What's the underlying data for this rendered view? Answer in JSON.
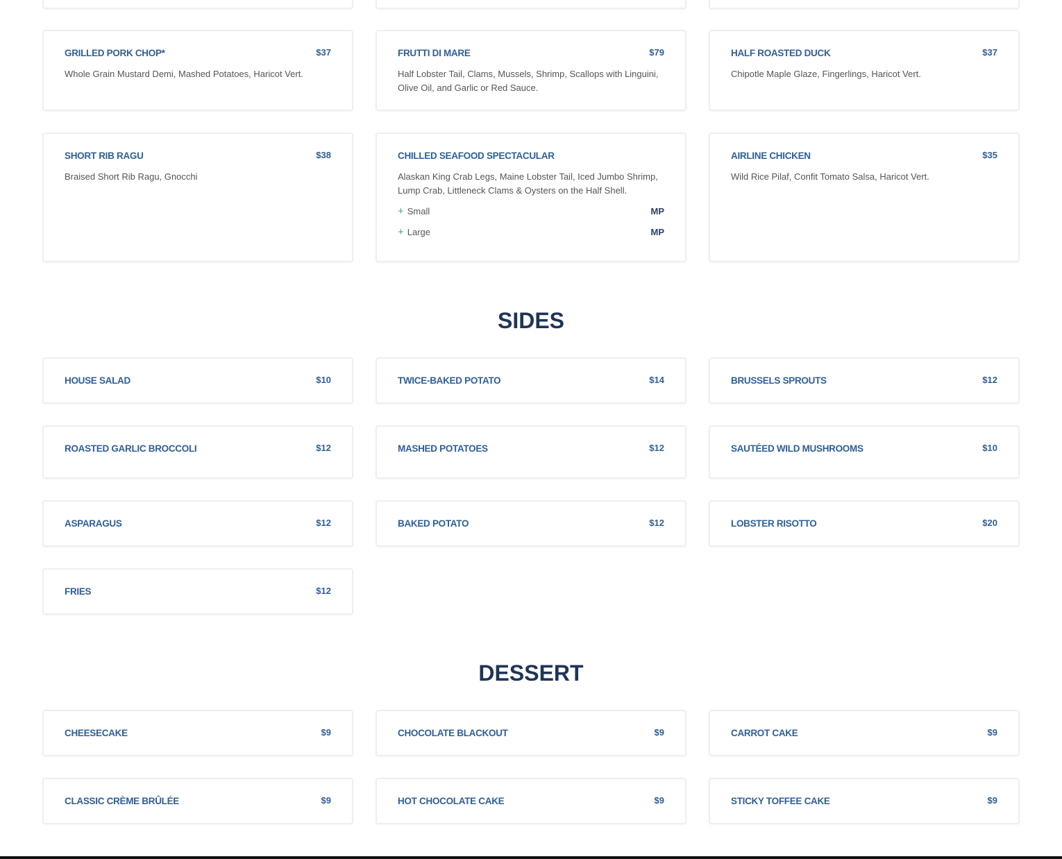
{
  "mains": [
    {
      "name": "Grilled Pork Chop*",
      "price": "$37",
      "desc": "Whole Grain Mustard Demi, Mashed Potatoes, Haricot Vert."
    },
    {
      "name": "Frutti Di Mare",
      "price": "$79",
      "desc": "Half Lobster Tail, Clams, Mussels, Shrimp, Scallops with Linguini, Olive Oil, and Garlic or Red Sauce."
    },
    {
      "name": "Half Roasted Duck",
      "price": "$37",
      "desc": "Chipotle Maple Glaze, Fingerlings, Haricot Vert."
    },
    {
      "name": "Short Rib Ragu",
      "price": "$38",
      "desc": "Braised Short Rib Ragu, Gnocchi"
    },
    {
      "name": "Chilled Seafood Spectacular",
      "price": "",
      "desc": "Alaskan King Crab Legs, Maine Lobster Tail, Iced Jumbo Shrimp, Lump Crab, Littleneck Clams & Oysters on the Half Shell.",
      "options": [
        {
          "label": "Small",
          "price": "MP"
        },
        {
          "label": "Large",
          "price": "MP"
        }
      ]
    },
    {
      "name": "Airline Chicken",
      "price": "$35",
      "desc": "Wild Rice Pilaf, Confit Tomato Salsa, Haricot Vert."
    }
  ],
  "sides": {
    "title": "SIDES",
    "items": [
      {
        "name": "House Salad",
        "price": "$10"
      },
      {
        "name": "Twice-Baked Potato",
        "price": "$14"
      },
      {
        "name": "Brussels Sprouts",
        "price": "$12"
      },
      {
        "name": "Roasted Garlic Broccoli",
        "price": "$12"
      },
      {
        "name": "Mashed Potatoes",
        "price": "$12"
      },
      {
        "name": "Sautéed Wild Mushrooms",
        "price": "$10"
      },
      {
        "name": "Asparagus",
        "price": "$12"
      },
      {
        "name": "Baked Potato",
        "price": "$12"
      },
      {
        "name": "Lobster Risotto",
        "price": "$20"
      },
      {
        "name": "Fries",
        "price": "$12"
      }
    ]
  },
  "dessert": {
    "title": "DESSERT",
    "items": [
      {
        "name": "Cheesecake",
        "price": "$9"
      },
      {
        "name": "Chocolate Blackout",
        "price": "$9"
      },
      {
        "name": "Carrot Cake",
        "price": "$9"
      },
      {
        "name": "Classic Crème Brûlée",
        "price": "$9"
      },
      {
        "name": "Hot Chocolate Cake",
        "price": "$9"
      },
      {
        "name": "Sticky Toffee Cake",
        "price": "$9"
      }
    ]
  }
}
